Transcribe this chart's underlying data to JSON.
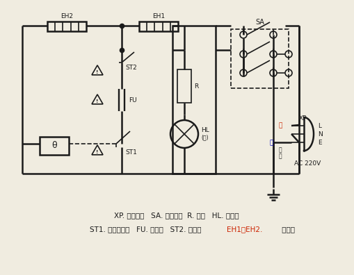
{
  "bg_color": "#f0ece0",
  "line_color": "#1a1a1a",
  "red_color": "#cc2200",
  "blue_color": "#0000bb",
  "line_width": 1.8,
  "thin_lw": 1.2,
  "title_line1": "XP. 电源插头   SA. 功率开关  R. 电阴   HL. 指示灯",
  "title_line2": "ST1. 调温温控器   FU. 燔断器   ST2. 温控器   EH1、EH2. 发热器",
  "label_EH2": "EH2",
  "label_EH1": "EH1",
  "label_SA": "SA",
  "label_ST2": "ST2",
  "label_FU": "FU",
  "label_ST1": "ST1",
  "label_R": "R",
  "label_HL": "HL",
  "label_HL2": "(红)",
  "label_XP": "XP",
  "label_L": "L",
  "label_N": "N",
  "label_E": "E",
  "label_AC": "AC 220V",
  "label_red": "红",
  "label_blue": "蓝",
  "label_yg": "黄\n绿",
  "font_size": 7,
  "font_size_small": 6.5
}
